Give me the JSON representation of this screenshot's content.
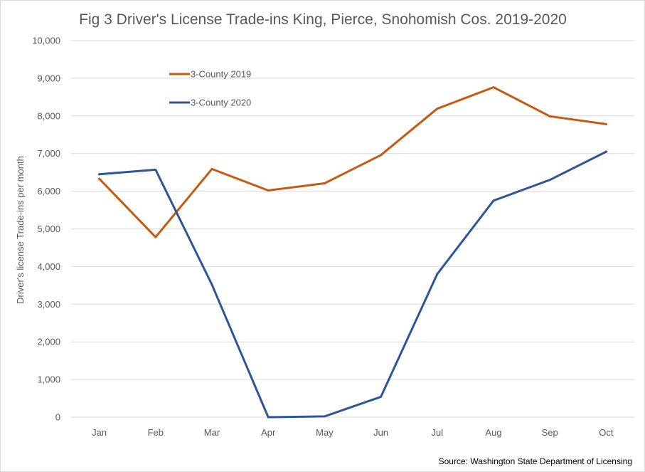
{
  "chart_data": {
    "type": "line",
    "title": "Fig 3 Driver's License Trade-ins King, Pierce, Snohomish Cos. 2019-2020",
    "xlabel": "",
    "ylabel": "Driver's license Trade-ins per month",
    "categories": [
      "Jan",
      "Feb",
      "Mar",
      "Apr",
      "May",
      "Jun",
      "Jul",
      "Aug",
      "Sep",
      "Oct"
    ],
    "ylim": [
      0,
      10000
    ],
    "yticks": [
      "0",
      "1,000",
      "2,000",
      "3,000",
      "4,000",
      "5,000",
      "6,000",
      "7,000",
      "8,000",
      "9,000",
      "10,000"
    ],
    "grid": true,
    "legend_position": "top-left",
    "series": [
      {
        "name": "3-County 2019",
        "color": "#c55a11",
        "values": [
          6330,
          4780,
          6590,
          6020,
          6210,
          6960,
          8190,
          8760,
          7990,
          7780
        ]
      },
      {
        "name": "3-County 2020",
        "color": "#2f5597",
        "values": [
          6450,
          6570,
          3520,
          0,
          20,
          540,
          3800,
          5750,
          6300,
          7050
        ]
      }
    ],
    "source": "Source: Washington State Department of Licensing"
  }
}
